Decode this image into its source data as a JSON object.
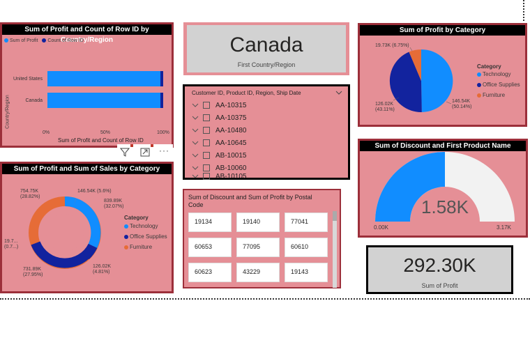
{
  "colors": {
    "tech": "#118dff",
    "office": "#12239e",
    "furniture": "#e66c37",
    "pink": "#e58f96",
    "border": "#9c2f3a",
    "gauge_bg": "#f2f2f2"
  },
  "chart1": {
    "title": "Sum of Profit and Count of Row ID by Country/Region",
    "legend": [
      {
        "label": "Sum of Profit",
        "color": "#118dff"
      },
      {
        "label": "Count of Row ID",
        "color": "#12239e"
      }
    ],
    "ylabel": "Country/Region",
    "xlabel": "Sum of Profit and Count of Row ID",
    "ticks": [
      "0%",
      "50%",
      "100%"
    ],
    "icons": {
      "filter": "filter-icon",
      "focus": "focus-mode-icon",
      "more": "more-options-icon"
    }
  },
  "card_country": {
    "value": "Canada",
    "label": "First Country/Region"
  },
  "chart_pie": {
    "title": "Sum of Profit by Category",
    "legend_title": "Category",
    "legend": [
      "Technology",
      "Office Supplies",
      "Furniture"
    ],
    "labels": {
      "furniture": "19.73K (6.75%)",
      "office_top": "126.02K",
      "office_bottom": "(43.11%)",
      "tech_top": "146.54K",
      "tech_bottom": "(50.14%)"
    }
  },
  "slicer": {
    "header": "Customer ID, Product ID, Region, Ship Date",
    "items": [
      "AA-10315",
      "AA-10375",
      "AA-10480",
      "AA-10645",
      "AB-10015",
      "AB-10060",
      "AB-10105"
    ]
  },
  "chart_donut": {
    "title": "Sum of Profit and Sum of Sales by Category",
    "legend_title": "Category",
    "legend": [
      "Technology",
      "Office Supplies",
      "Furniture"
    ],
    "labels": {
      "l1a": "754.75K",
      "l1b": "(28.82%)",
      "l2": "146.54K (5.6%)",
      "l3a": "839.89K",
      "l3b": "(32.07%)",
      "l4a": "126.02K",
      "l4b": "(4.81%)",
      "l5a": "731.89K",
      "l5b": "(27.95%)",
      "l6a": "19.7...",
      "l6b": "(0.7...)"
    }
  },
  "gauge": {
    "title": "Sum of Discount and First Product Name",
    "value": "1.58K",
    "min": "0.00K",
    "max": "3.17K",
    "fraction": 0.5
  },
  "postal": {
    "title": "Sum of Discount and Sum of Profit by Postal Code",
    "rows": [
      [
        "19134",
        "19140",
        "77041"
      ],
      [
        "60653",
        "77095",
        "60610"
      ],
      [
        "60623",
        "43229",
        "19143"
      ]
    ]
  },
  "card_profit": {
    "value": "292.30K",
    "label": "Sum of Profit"
  },
  "chart_data": [
    {
      "type": "bar",
      "title": "Sum of Profit and Count of Row ID by Country/Region",
      "categories": [
        "United States",
        "Canada"
      ],
      "series": [
        {
          "name": "Sum of Profit",
          "values": [
            98,
            98
          ]
        },
        {
          "name": "Count of Row ID",
          "values": [
            2,
            2
          ]
        }
      ],
      "xlabel": "Sum of Profit and Count of Row ID",
      "ylabel": "Country/Region",
      "xlim": [
        0,
        100
      ]
    },
    {
      "type": "pie",
      "title": "Sum of Profit by Category",
      "categories": [
        "Technology",
        "Office Supplies",
        "Furniture"
      ],
      "values": [
        146.54,
        126.02,
        19.73
      ],
      "legend": "right"
    },
    {
      "type": "pie",
      "title": "Sum of Profit and Sum of Sales by Category",
      "categories": [
        "Technology",
        "Office Supplies",
        "Furniture"
      ],
      "series": [
        {
          "name": "Sum of Profit",
          "values": [
            146.54,
            126.02,
            19.7
          ]
        },
        {
          "name": "Sum of Sales",
          "values": [
            839.89,
            731.89,
            754.75
          ]
        }
      ]
    }
  ]
}
